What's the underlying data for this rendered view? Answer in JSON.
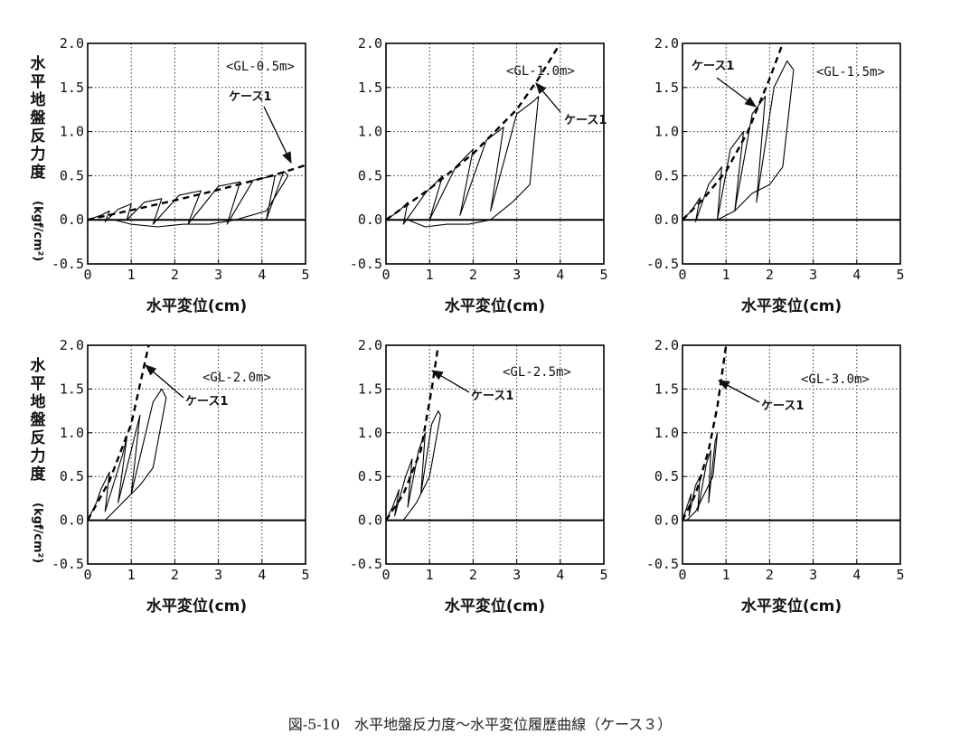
{
  "figure": {
    "caption": "図-5-10　水平地盤反力度～水平変位履歴曲線（ケース３）",
    "y_label_main": "水平地盤反力度",
    "y_label_unit": "(kgf/cm²)",
    "x_label": "水平変位(cm)"
  },
  "chart_data": [
    {
      "type": "line",
      "depth_label": "<GL-0.5m>",
      "annotation": "ケース1",
      "xlim": [
        0,
        5
      ],
      "ylim": [
        -0.5,
        2.0
      ],
      "xticks": [
        "0",
        "1",
        "2",
        "3",
        "4",
        "5"
      ],
      "yticks": [
        "-0.5",
        "0.0",
        "0.5",
        "1.0",
        "1.5",
        "2.0"
      ],
      "grid": true,
      "series": [
        {
          "style": "dashed",
          "x": [
            0,
            1,
            2,
            3,
            4,
            4.5,
            5
          ],
          "y": [
            0,
            0.11,
            0.22,
            0.34,
            0.47,
            0.54,
            0.62
          ]
        },
        {
          "style": "solid",
          "x": [
            0,
            0.3,
            0.5,
            0.4,
            0.7,
            1.0,
            0.9,
            1.3,
            1.7,
            1.5,
            2.1,
            2.6,
            2.3,
            3.0,
            3.5,
            3.2,
            3.8,
            4.3,
            4.1,
            4.5,
            4.6,
            4.1,
            3.4,
            2.8,
            2.2,
            1.6,
            1.0,
            0.6
          ],
          "y": [
            0,
            0.05,
            0.1,
            -0.02,
            0.12,
            0.18,
            0.0,
            0.2,
            0.24,
            -0.05,
            0.28,
            0.33,
            -0.05,
            0.38,
            0.43,
            -0.05,
            0.45,
            0.5,
            0.0,
            0.55,
            0.5,
            0.1,
            0.0,
            -0.05,
            -0.05,
            -0.08,
            -0.05,
            0
          ]
        }
      ]
    },
    {
      "type": "line",
      "depth_label": "<GL-1.0m>",
      "annotation": "ケース1",
      "xlim": [
        0,
        5
      ],
      "ylim": [
        -0.5,
        2.0
      ],
      "xticks": [
        "0",
        "1",
        "2",
        "3",
        "4",
        "5"
      ],
      "yticks": [
        "-0.5",
        "0.0",
        "0.5",
        "1.0",
        "1.5",
        "2.0"
      ],
      "grid": true,
      "series": [
        {
          "style": "dashed",
          "x": [
            0,
            1,
            2,
            3,
            3.5,
            4
          ],
          "y": [
            0,
            0.35,
            0.75,
            1.25,
            1.6,
            2.0
          ]
        },
        {
          "style": "solid",
          "x": [
            0,
            0.3,
            0.5,
            0.4,
            0.9,
            1.3,
            1.0,
            1.6,
            2.0,
            1.7,
            2.3,
            2.7,
            2.4,
            3.0,
            3.4,
            3.5,
            3.3,
            2.9,
            2.4,
            1.9,
            1.4,
            0.9,
            0.5
          ],
          "y": [
            0,
            0.1,
            0.2,
            -0.05,
            0.3,
            0.5,
            0.0,
            0.6,
            0.8,
            0.05,
            0.9,
            1.05,
            0.1,
            1.2,
            1.35,
            1.4,
            0.4,
            0.2,
            0.0,
            -0.05,
            -0.05,
            -0.08,
            0
          ]
        }
      ]
    },
    {
      "type": "line",
      "depth_label": "<GL-1.5m>",
      "annotation": "ケース1",
      "xlim": [
        0,
        5
      ],
      "ylim": [
        -0.5,
        2.0
      ],
      "xticks": [
        "0",
        "1",
        "2",
        "3",
        "4",
        "5"
      ],
      "yticks": [
        "-0.5",
        "0.0",
        "0.5",
        "1.0",
        "1.5",
        "2.0"
      ],
      "grid": true,
      "series": [
        {
          "style": "dashed",
          "x": [
            0,
            0.5,
            1.0,
            1.5,
            2.0,
            2.3
          ],
          "y": [
            0,
            0.25,
            0.55,
            1.0,
            1.6,
            2.0
          ]
        },
        {
          "style": "solid",
          "x": [
            0,
            0.2,
            0.4,
            0.3,
            0.6,
            0.9,
            0.8,
            1.1,
            1.4,
            1.2,
            1.6,
            1.9,
            1.7,
            2.1,
            2.4,
            2.55,
            2.3,
            2.0,
            1.6,
            1.2,
            0.8,
            0.4
          ],
          "y": [
            0,
            0.1,
            0.25,
            -0.02,
            0.4,
            0.6,
            0.0,
            0.8,
            1.0,
            0.1,
            1.2,
            1.4,
            0.2,
            1.5,
            1.8,
            1.7,
            0.6,
            0.4,
            0.3,
            0.1,
            0.0,
            0
          ]
        }
      ]
    },
    {
      "type": "line",
      "depth_label": "<GL-2.0m>",
      "annotation": "ケース1",
      "xlim": [
        0,
        5
      ],
      "ylim": [
        -0.5,
        2.0
      ],
      "xticks": [
        "0",
        "1",
        "2",
        "3",
        "4",
        "5"
      ],
      "yticks": [
        "-0.5",
        "0.0",
        "0.5",
        "1.0",
        "1.5",
        "2.0"
      ],
      "grid": true,
      "series": [
        {
          "style": "dashed",
          "x": [
            0,
            0.5,
            1.0,
            1.4
          ],
          "y": [
            0,
            0.45,
            1.1,
            2.0
          ]
        },
        {
          "style": "solid",
          "x": [
            0,
            0.2,
            0.3,
            0.5,
            0.4,
            0.8,
            0.9,
            0.7,
            1.1,
            1.2,
            1.0,
            1.5,
            1.7,
            1.8,
            1.5,
            1.2,
            0.8,
            0.4
          ],
          "y": [
            0,
            0.2,
            0.35,
            0.55,
            0.1,
            0.75,
            0.95,
            0.2,
            1.0,
            1.2,
            0.3,
            1.35,
            1.5,
            1.4,
            0.6,
            0.4,
            0.2,
            0
          ]
        }
      ]
    },
    {
      "type": "line",
      "depth_label": "<GL-2.5m>",
      "annotation": "ケース1",
      "xlim": [
        0,
        5
      ],
      "ylim": [
        -0.5,
        2.0
      ],
      "xticks": [
        "0",
        "1",
        "2",
        "3",
        "4",
        "5"
      ],
      "yticks": [
        "-0.5",
        "0.0",
        "0.5",
        "1.0",
        "1.5",
        "2.0"
      ],
      "grid": true,
      "series": [
        {
          "style": "dashed",
          "x": [
            0,
            0.4,
            0.8,
            1.05,
            1.2
          ],
          "y": [
            0,
            0.3,
            0.8,
            1.5,
            2.0
          ]
        },
        {
          "style": "solid",
          "x": [
            0,
            0.15,
            0.3,
            0.2,
            0.45,
            0.6,
            0.5,
            0.75,
            0.9,
            0.8,
            1.05,
            1.2,
            1.25,
            1.0,
            0.7,
            0.4
          ],
          "y": [
            0,
            0.15,
            0.35,
            0.05,
            0.5,
            0.7,
            0.15,
            0.8,
            1.0,
            0.3,
            1.1,
            1.25,
            1.2,
            0.5,
            0.2,
            0
          ]
        }
      ]
    },
    {
      "type": "line",
      "depth_label": "<GL-3.0m>",
      "annotation": "ケース1",
      "xlim": [
        0,
        5
      ],
      "ylim": [
        -0.5,
        2.0
      ],
      "xticks": [
        "0",
        "1",
        "2",
        "3",
        "4",
        "5"
      ],
      "yticks": [
        "-0.5",
        "0.0",
        "0.5",
        "1.0",
        "1.5",
        "2.0"
      ],
      "grid": true,
      "series": [
        {
          "style": "dashed",
          "x": [
            0,
            0.3,
            0.6,
            0.8,
            1.0
          ],
          "y": [
            0,
            0.3,
            0.8,
            1.3,
            2.0
          ]
        },
        {
          "style": "solid",
          "x": [
            0,
            0.1,
            0.2,
            0.15,
            0.3,
            0.4,
            0.35,
            0.55,
            0.65,
            0.6,
            0.75,
            0.8,
            0.7,
            0.5,
            0.3,
            0.1
          ],
          "y": [
            0,
            0.15,
            0.3,
            0.05,
            0.4,
            0.5,
            0.1,
            0.65,
            0.8,
            0.2,
            0.9,
            1.0,
            0.5,
            0.3,
            0.1,
            0
          ]
        }
      ]
    }
  ]
}
